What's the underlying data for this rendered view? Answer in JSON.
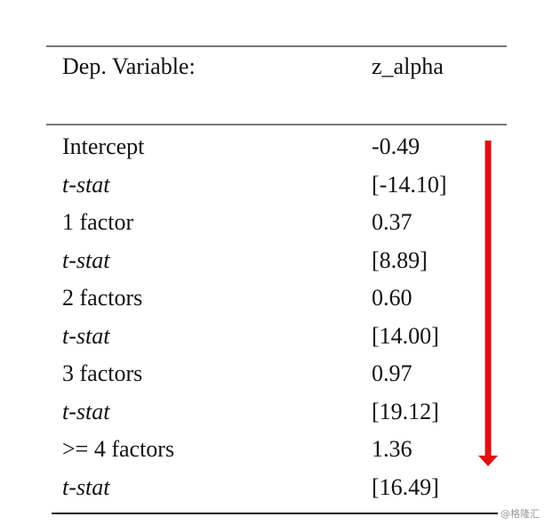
{
  "table": {
    "header": [
      "Dep. Variable:",
      "z_alpha"
    ],
    "rows": [
      [
        "Intercept",
        "-0.49"
      ],
      [
        "t-stat",
        "[-14.10]"
      ],
      [
        "1 factor",
        "0.37"
      ],
      [
        "t-stat",
        "[8.89]"
      ],
      [
        "2 factors",
        "0.60"
      ],
      [
        "t-stat",
        "[14.00]"
      ],
      [
        "3 factors",
        "0.97"
      ],
      [
        "t-stat",
        "[19.12]"
      ],
      [
        ">= 4 factors",
        "1.36"
      ],
      [
        "t-stat",
        "[16.49]"
      ]
    ]
  },
  "watermark": "@格隆汇"
}
